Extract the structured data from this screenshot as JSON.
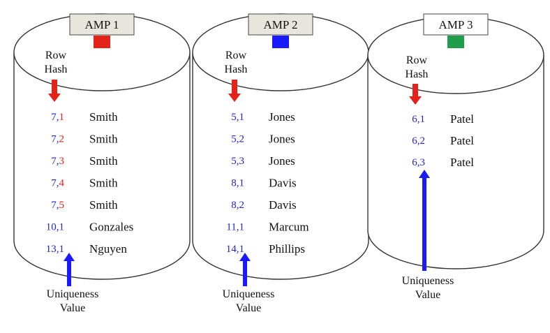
{
  "amps": [
    {
      "label": "AMP 1",
      "label_box_fill": "#e8e5dd",
      "marker_color": "#e32219",
      "row_hash_lines": [
        "Row",
        "Hash"
      ],
      "rows": [
        {
          "hash": "7",
          "uniq": "1",
          "name": "Smith",
          "name_color": "#e32219",
          "uniq_color": "#e32219"
        },
        {
          "hash": "7",
          "uniq": "2",
          "name": "Smith",
          "name_color": "#e32219",
          "uniq_color": "#e32219"
        },
        {
          "hash": "7",
          "uniq": "3",
          "name": "Smith",
          "name_color": "#e32219",
          "uniq_color": "#e32219"
        },
        {
          "hash": "7",
          "uniq": "4",
          "name": "Smith",
          "name_color": "#e32219",
          "uniq_color": "#e32219"
        },
        {
          "hash": "7",
          "uniq": "5",
          "name": "Smith",
          "name_color": "#e32219",
          "uniq_color": "#e32219"
        },
        {
          "hash": "10",
          "uniq": "1",
          "name": "Gonzales",
          "name_color": "#111111",
          "uniq_color": "#2323c8"
        },
        {
          "hash": "13",
          "uniq": "1",
          "name": "Nguyen",
          "name_color": "#111111",
          "uniq_color": "#2323c8"
        }
      ],
      "uniqueness_lines": [
        "Uniqueness",
        "Value"
      ]
    },
    {
      "label": "AMP 2",
      "label_box_fill": "#e8e5dd",
      "marker_color": "#1a1aff",
      "row_hash_lines": [
        "Row",
        "Hash"
      ],
      "rows": [
        {
          "hash": "5",
          "uniq": "1",
          "name": "Jones",
          "name_color": "#111111",
          "uniq_color": "#2323c8"
        },
        {
          "hash": "5",
          "uniq": "2",
          "name": "Jones",
          "name_color": "#111111",
          "uniq_color": "#2323c8"
        },
        {
          "hash": "5",
          "uniq": "3",
          "name": "Jones",
          "name_color": "#111111",
          "uniq_color": "#2323c8"
        },
        {
          "hash": "8",
          "uniq": "1",
          "name": "Davis",
          "name_color": "#111111",
          "uniq_color": "#2323c8"
        },
        {
          "hash": "8",
          "uniq": "2",
          "name": "Davis",
          "name_color": "#111111",
          "uniq_color": "#2323c8"
        },
        {
          "hash": "11",
          "uniq": "1",
          "name": "Marcum",
          "name_color": "#111111",
          "uniq_color": "#2323c8"
        },
        {
          "hash": "14",
          "uniq": "1",
          "name": "Phillips",
          "name_color": "#111111",
          "uniq_color": "#2323c8"
        }
      ],
      "uniqueness_lines": [
        "Uniqueness",
        "Value"
      ]
    },
    {
      "label": "AMP 3",
      "label_box_fill": "#ffffff",
      "marker_color": "#1e9e4a",
      "row_hash_lines": [
        "Row",
        "Hash"
      ],
      "rows": [
        {
          "hash": "6",
          "uniq": "1",
          "name": "Patel",
          "name_color": "#111111",
          "uniq_color": "#2323c8"
        },
        {
          "hash": "6",
          "uniq": "2",
          "name": "Patel",
          "name_color": "#111111",
          "uniq_color": "#2323c8"
        },
        {
          "hash": "6",
          "uniq": "3",
          "name": "Patel",
          "name_color": "#111111",
          "uniq_color": "#2323c8"
        }
      ],
      "uniqueness_lines": [
        "Uniqueness",
        "Value"
      ]
    }
  ],
  "colors": {
    "hash_digit": "#2323c8",
    "row_hash_arrow": "#e32219",
    "uniqueness_arrow": "#1a1aff",
    "cylinder_stroke": "#333333"
  }
}
